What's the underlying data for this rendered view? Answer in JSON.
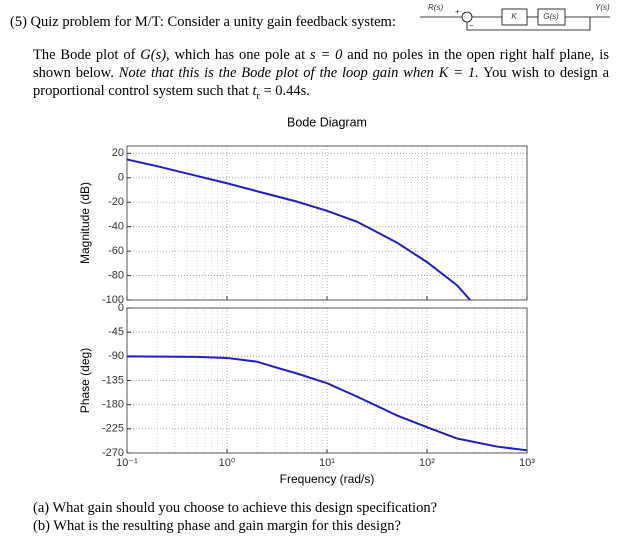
{
  "problem": {
    "heading": "(5) Quiz problem for M/T:  Consider a unity gain feedback system:",
    "diagram": {
      "input": "R(s)",
      "plus": "+",
      "minus": "−",
      "gain": "K",
      "plant": "G(s)",
      "output": "Y(s)"
    },
    "paragraph": [
      [
        "The Bode plot of ",
        "G(s)",
        ", which has one pole at ",
        "s = 0",
        " and no poles in the open right half plane, is"
      ],
      [
        "shown below. ",
        "Note that this is the Bode plot of the loop gain when K = 1.",
        " You wish to design a"
      ],
      [
        "proportional control system such that ",
        "t",
        "r",
        " = 0.44s."
      ]
    ],
    "questions": [
      "(a) What gain should you choose to achieve this design specification?",
      "(b) What is the resulting phase and gain margin for this design?"
    ]
  },
  "chart_data": [
    {
      "type": "line",
      "title": "Bode Diagram",
      "ylabel": "Magnitude (dB)",
      "log_x": true,
      "grid": true,
      "x": [
        0.1,
        0.2,
        0.5,
        1,
        2,
        5,
        10,
        20,
        50,
        100,
        200,
        270
      ],
      "series": [
        {
          "color": "#1f1fbf",
          "values": [
            15,
            9.5,
            1.5,
            -4.5,
            -11,
            -19.5,
            -27,
            -36,
            -53,
            -69,
            -88,
            -100
          ]
        }
      ],
      "xlim": [
        0.1,
        1000
      ],
      "xticks": [
        0.1,
        1,
        10,
        100,
        1000
      ],
      "ylim": [
        -100,
        26
      ],
      "yticks": [
        -100,
        -80,
        -60,
        -40,
        -20,
        0,
        20
      ]
    },
    {
      "type": "line",
      "ylabel": "Phase (deg)",
      "xlabel": "Frequency (rad/s)",
      "log_x": true,
      "grid": true,
      "x": [
        0.1,
        0.5,
        1,
        2,
        3,
        5,
        10,
        20,
        50,
        100,
        200,
        500,
        1000
      ],
      "series": [
        {
          "color": "#1f1fbf",
          "values": [
            -90,
            -91,
            -93,
            -100,
            -110,
            -122,
            -140,
            -165,
            -200,
            -222,
            -243,
            -258,
            -265
          ]
        }
      ],
      "xlim": [
        0.1,
        1000
      ],
      "xticks": [
        {
          "value": 0.1,
          "label": "10⁻¹"
        },
        {
          "value": 1,
          "label": "10⁰"
        },
        {
          "value": 10,
          "label": "10¹"
        },
        {
          "value": 100,
          "label": "10²"
        },
        {
          "value": 1000,
          "label": "10³"
        }
      ],
      "ylim": [
        -270,
        0
      ],
      "yticks": [
        -270,
        -225,
        -180,
        -135,
        -90,
        -45,
        0
      ]
    }
  ]
}
